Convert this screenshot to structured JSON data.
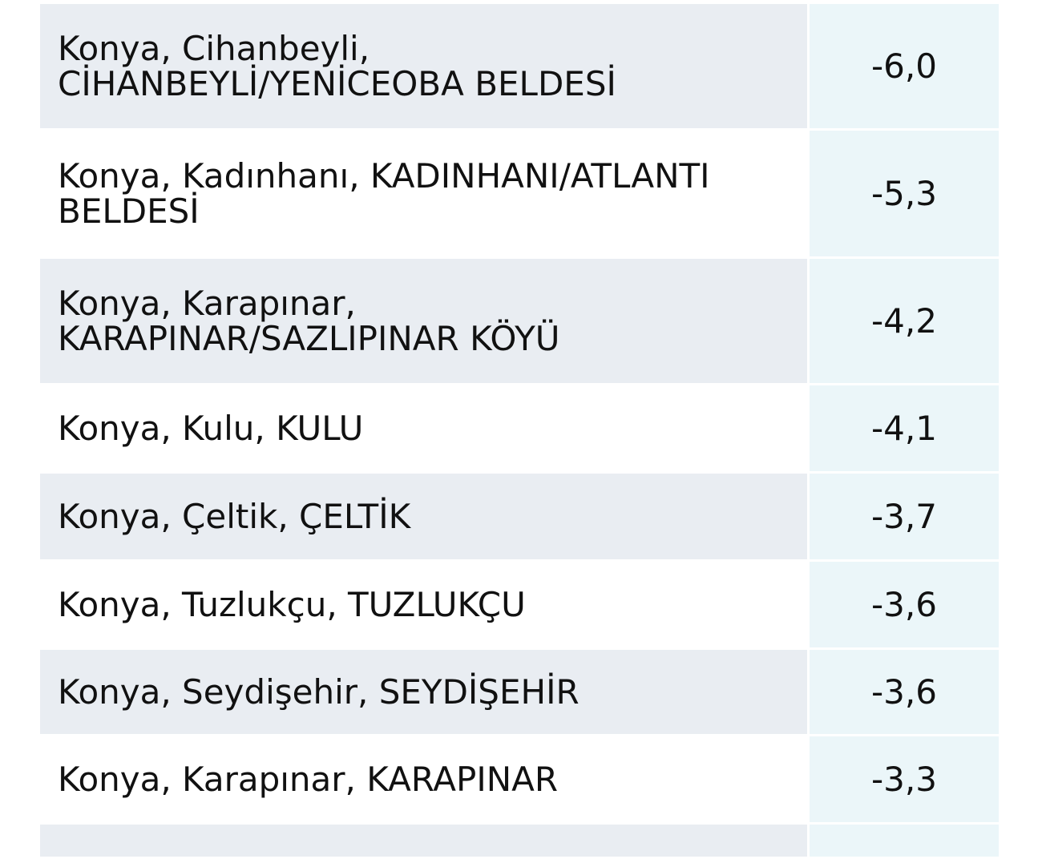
{
  "table": {
    "rows": [
      {
        "location": "Konya, Cihanbeyli, CİHANBEYLİ/YENİCEOBA BELDESİ",
        "value": "-6,0"
      },
      {
        "location": "Konya, Kadınhanı, KADINHANI/ATLANTI BELDESİ",
        "value": "-5,3"
      },
      {
        "location": "Konya, Karapınar, KARAPINAR/SAZLIPINAR KÖYÜ",
        "value": "-4,2"
      },
      {
        "location": "Konya, Kulu, KULU",
        "value": "-4,1"
      },
      {
        "location": "Konya, Çeltik, ÇELTİK",
        "value": "-3,7"
      },
      {
        "location": "Konya, Tuzlukçu, TUZLUKÇU",
        "value": "-3,6"
      },
      {
        "location": "Konya, Seydişehir, SEYDİŞEHİR",
        "value": "-3,6"
      },
      {
        "location": "Konya, Karapınar, KARAPINAR",
        "value": "-3,3"
      },
      {
        "location": "",
        "value": ""
      }
    ]
  }
}
